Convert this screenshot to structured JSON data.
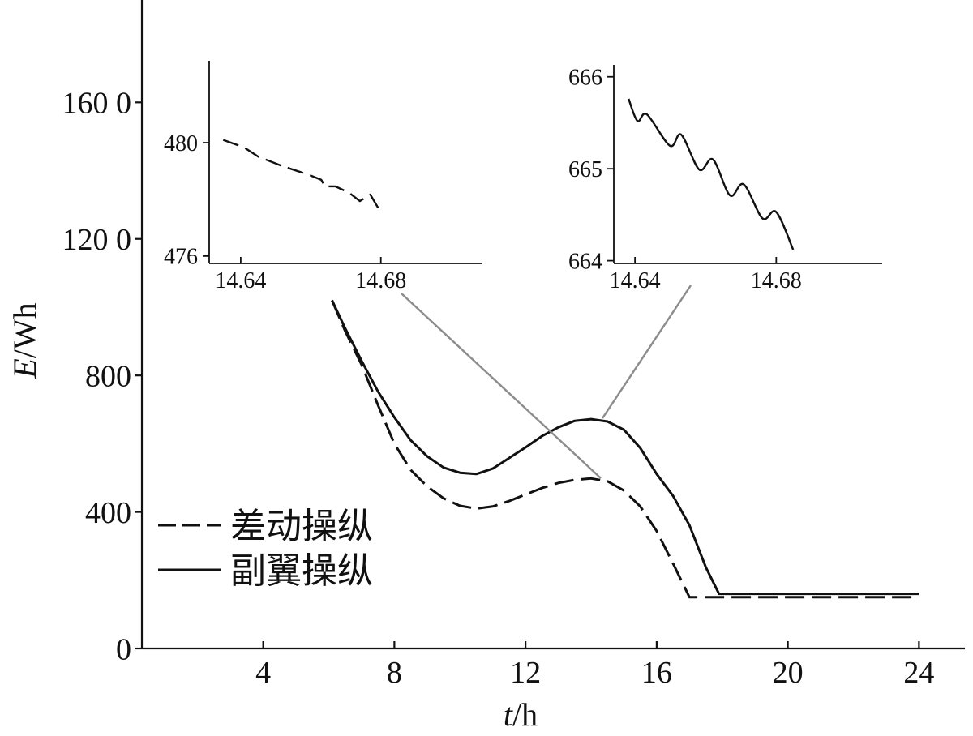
{
  "colors": {
    "line": "#111111",
    "axis": "#111111",
    "connector": "#8c8c8c",
    "background": "#ffffff"
  },
  "chart_data": [
    {
      "type": "line",
      "xlabel": "t/h",
      "ylabel": "E/Wh",
      "xlim": [
        0.3,
        25.4
      ],
      "ylim": [
        0,
        1900
      ],
      "xticks": [
        4,
        8,
        12,
        16,
        20,
        24
      ],
      "xtick_labels": [
        "4",
        "8",
        "12",
        "16",
        "20",
        "24"
      ],
      "yticks": [
        0,
        400,
        800,
        1200,
        1600
      ],
      "ytick_labels": [
        "0",
        "400",
        "800",
        "120 0",
        "160 0"
      ],
      "grid": false,
      "legend_position": "lower-left",
      "series": [
        {
          "name": "差动操纵",
          "dashed": true,
          "points": [
            [
              6.1,
              1020
            ],
            [
              6.5,
              930
            ],
            [
              7.0,
              832
            ],
            [
              7.5,
              713
            ],
            [
              8.0,
              600
            ],
            [
              8.5,
              523
            ],
            [
              9.0,
              475
            ],
            [
              9.5,
              440
            ],
            [
              10.0,
              418
            ],
            [
              10.5,
              410
            ],
            [
              11.0,
              416
            ],
            [
              11.5,
              432
            ],
            [
              12.0,
              451
            ],
            [
              12.5,
              470
            ],
            [
              13.0,
              485
            ],
            [
              13.5,
              494
            ],
            [
              14.0,
              498
            ],
            [
              14.5,
              490
            ],
            [
              15.0,
              463
            ],
            [
              15.5,
              416
            ],
            [
              16.0,
              344
            ],
            [
              16.5,
              249
            ],
            [
              17.0,
              150
            ],
            [
              24.0,
              150
            ]
          ]
        },
        {
          "name": "副翼操纵",
          "dashed": false,
          "points": [
            [
              6.1,
              1020
            ],
            [
              6.5,
              938
            ],
            [
              7.0,
              843
            ],
            [
              7.5,
              753
            ],
            [
              8.0,
              677
            ],
            [
              8.5,
              610
            ],
            [
              9.0,
              563
            ],
            [
              9.5,
              530
            ],
            [
              10.0,
              515
            ],
            [
              10.5,
              511
            ],
            [
              11.0,
              527
            ],
            [
              11.5,
              558
            ],
            [
              12.0,
              589
            ],
            [
              12.5,
              622
            ],
            [
              13.0,
              648
            ],
            [
              13.5,
              667
            ],
            [
              14.0,
              672
            ],
            [
              14.5,
              665
            ],
            [
              15.0,
              641
            ],
            [
              15.5,
              587
            ],
            [
              16.0,
              511
            ],
            [
              16.5,
              447
            ],
            [
              17.0,
              361
            ],
            [
              17.5,
              238
            ],
            [
              17.9,
              160
            ],
            [
              24.0,
              160
            ]
          ]
        }
      ]
    },
    {
      "type": "line",
      "xlim": [
        14.631,
        14.709
      ],
      "ylim": [
        475.74,
        482.89
      ],
      "xticks": [
        14.64,
        14.68
      ],
      "xtick_labels": [
        "14.64",
        "14.68"
      ],
      "yticks": [
        476,
        480
      ],
      "ytick_labels": [
        "476",
        "480"
      ],
      "grid": false,
      "series": [
        {
          "dashed": true,
          "points": [
            [
              14.635,
              480.1
            ],
            [
              14.641,
              479.83
            ],
            [
              14.645,
              479.51
            ],
            [
              14.652,
              479.17
            ],
            [
              14.659,
              478.89
            ],
            [
              14.663,
              478.69
            ],
            [
              14.664,
              478.46
            ],
            [
              14.667,
              478.46
            ],
            [
              14.671,
              478.23
            ],
            [
              14.674,
              477.94
            ],
            [
              14.677,
              478.17
            ],
            [
              14.68,
              477.54
            ]
          ]
        }
      ]
    },
    {
      "type": "line",
      "xlim": [
        14.634,
        14.71
      ],
      "ylim": [
        663.97,
        666.13
      ],
      "xticks": [
        14.64,
        14.68
      ],
      "xtick_labels": [
        "14.64",
        "14.68"
      ],
      "yticks": [
        664,
        665,
        666
      ],
      "ytick_labels": [
        "664",
        "665",
        "666"
      ],
      "grid": false,
      "series": [
        {
          "dashed": false,
          "points": [
            [
              14.6382,
              665.76
            ],
            [
              14.6407,
              665.52
            ],
            [
              14.6434,
              665.59
            ],
            [
              14.6499,
              665.25
            ],
            [
              14.6531,
              665.37
            ],
            [
              14.6582,
              664.99
            ],
            [
              14.6621,
              665.1
            ],
            [
              14.6669,
              664.71
            ],
            [
              14.6708,
              664.83
            ],
            [
              14.6761,
              664.46
            ],
            [
              14.68,
              664.53
            ],
            [
              14.6848,
              664.12
            ]
          ]
        }
      ]
    }
  ]
}
